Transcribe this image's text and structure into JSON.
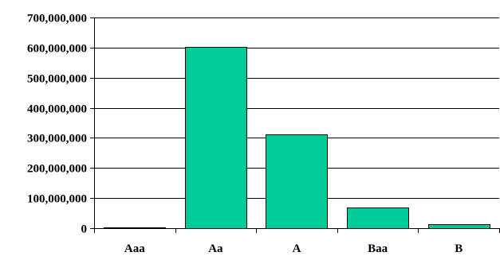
{
  "colors": {
    "bar_fill": "#00cc99",
    "bar_stroke": "#000000",
    "grid": "#000000",
    "axis": "#000000",
    "background": "#ffffff"
  },
  "chart_data": {
    "type": "bar",
    "title": "",
    "xlabel": "",
    "ylabel": "",
    "categories": [
      "Aaa",
      "Aa",
      "A",
      "Baa",
      "B"
    ],
    "values": [
      3000000,
      602000000,
      313000000,
      68000000,
      12000000
    ],
    "ylim": [
      0,
      700000000
    ],
    "yticks": [
      0,
      100000000,
      200000000,
      300000000,
      400000000,
      500000000,
      600000000,
      700000000
    ],
    "ytick_labels": [
      "0",
      "100,000,000",
      "200,000,000",
      "300,000,000",
      "400,000,000",
      "500,000,000",
      "600,000,000",
      "700,000,000"
    ],
    "grid": true,
    "legend": "none"
  }
}
